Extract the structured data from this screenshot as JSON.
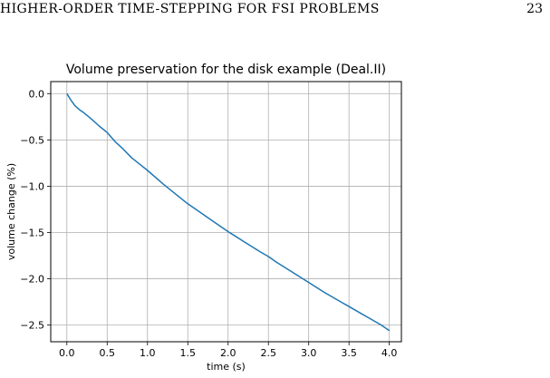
{
  "page": {
    "running_head": "HIGHER-ORDER TIME-STEPPING FOR FSI PROBLEMS",
    "page_number": "23"
  },
  "chart_data": {
    "type": "line",
    "title": "Volume preservation for the disk example (Deal.II)",
    "xlabel": "time (s)",
    "ylabel": "volume change (%)",
    "xlim": [
      -0.2,
      4.15
    ],
    "ylim": [
      -2.68,
      0.13
    ],
    "xticks": [
      0.0,
      0.5,
      1.0,
      1.5,
      2.0,
      2.5,
      3.0,
      3.5,
      4.0
    ],
    "xtick_labels": [
      "0.0",
      "0.5",
      "1.0",
      "1.5",
      "2.0",
      "2.5",
      "3.0",
      "3.5",
      "4.0"
    ],
    "yticks": [
      0.0,
      -0.5,
      -1.0,
      -1.5,
      -2.0,
      -2.5
    ],
    "ytick_labels": [
      "0.0",
      "−0.5",
      "−1.0",
      "−1.5",
      "−2.0",
      "−2.5"
    ],
    "grid": true,
    "series_color": "#1f77b4",
    "series": [
      {
        "x": [
          0.0,
          0.05,
          0.1,
          0.15,
          0.2,
          0.3,
          0.4,
          0.5,
          0.6,
          0.7,
          0.8,
          0.9,
          1.0,
          1.2,
          1.4,
          1.5,
          1.6,
          1.8,
          2.0,
          2.2,
          2.4,
          2.5,
          2.6,
          2.8,
          3.0,
          3.2,
          3.4,
          3.5,
          3.6,
          3.8,
          3.9,
          4.0
        ],
        "values": [
          0.0,
          -0.07,
          -0.13,
          -0.17,
          -0.2,
          -0.27,
          -0.35,
          -0.42,
          -0.52,
          -0.6,
          -0.69,
          -0.76,
          -0.83,
          -0.98,
          -1.12,
          -1.19,
          -1.25,
          -1.37,
          -1.49,
          -1.6,
          -1.71,
          -1.76,
          -1.82,
          -1.93,
          -2.04,
          -2.15,
          -2.25,
          -2.3,
          -2.35,
          -2.45,
          -2.5,
          -2.56
        ]
      }
    ]
  }
}
